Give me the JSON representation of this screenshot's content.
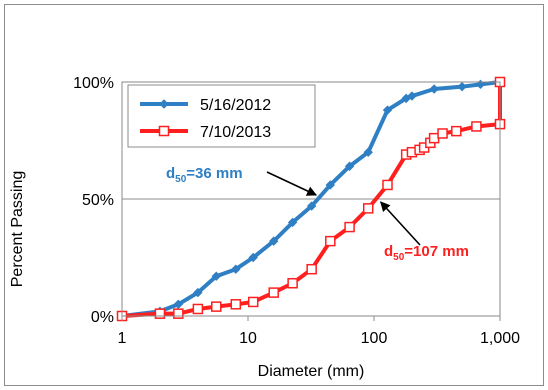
{
  "chart_data": {
    "type": "line",
    "xscale": "log",
    "xlabel": "Diameter (mm)",
    "ylabel": "Percent Passing",
    "xlim": [
      1,
      1000
    ],
    "ylim": [
      0,
      100
    ],
    "x_tick_labels": [
      "1",
      "10",
      "100",
      "1,000"
    ],
    "x_ticks": [
      1,
      10,
      100,
      1000
    ],
    "y_tick_labels": [
      "0%",
      "50%",
      "100%"
    ],
    "y_ticks": [
      0,
      50,
      100
    ],
    "grid": "horizontal",
    "legend_position": "top-left",
    "series": [
      {
        "name": "5/16/2012",
        "color": "#2f7fc4",
        "marker": "diamond",
        "points": [
          [
            1,
            0
          ],
          [
            2,
            2
          ],
          [
            2.8,
            5
          ],
          [
            4,
            10
          ],
          [
            5.6,
            17
          ],
          [
            8,
            20
          ],
          [
            11,
            25
          ],
          [
            16,
            32
          ],
          [
            22.6,
            40
          ],
          [
            32,
            47
          ],
          [
            45,
            56
          ],
          [
            64,
            64
          ],
          [
            90,
            70
          ],
          [
            128,
            88
          ],
          [
            180,
            93
          ],
          [
            200,
            94
          ],
          [
            300,
            97
          ],
          [
            500,
            98
          ],
          [
            700,
            99
          ],
          [
            1000,
            100
          ]
        ]
      },
      {
        "name": "7/10/2013",
        "color": "#ff1f1f",
        "marker": "square",
        "points": [
          [
            1,
            0
          ],
          [
            2,
            1
          ],
          [
            2.8,
            1
          ],
          [
            4,
            3
          ],
          [
            5.6,
            4
          ],
          [
            8,
            5
          ],
          [
            11,
            6
          ],
          [
            16,
            10
          ],
          [
            22.6,
            14
          ],
          [
            32,
            20
          ],
          [
            45,
            32
          ],
          [
            64,
            38
          ],
          [
            90,
            46
          ],
          [
            128,
            56
          ],
          [
            180,
            69
          ],
          [
            200,
            70
          ],
          [
            230,
            71
          ],
          [
            250,
            72
          ],
          [
            280,
            74
          ],
          [
            300,
            76
          ],
          [
            350,
            78
          ],
          [
            450,
            79
          ],
          [
            650,
            81
          ],
          [
            1000,
            82
          ],
          [
            1000,
            100
          ]
        ]
      }
    ],
    "annotations": [
      {
        "base": "d",
        "sub": "50",
        "text": "=36 mm",
        "color": "#2f7fc4",
        "target": [
          36,
          50
        ]
      },
      {
        "base": "d",
        "sub": "50",
        "text": "=107 mm",
        "color": "#ff1f1f",
        "target": [
          107,
          50
        ]
      }
    ]
  }
}
